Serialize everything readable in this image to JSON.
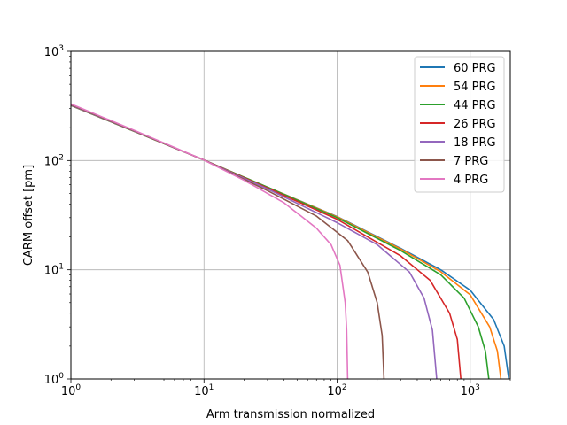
{
  "chart_data": {
    "type": "line",
    "title": "",
    "xlabel": "Arm transmission normalized",
    "ylabel": "CARM offset [pm]",
    "xscale": "log",
    "yscale": "log",
    "xlim": [
      1,
      2000
    ],
    "ylim": [
      1,
      1000
    ],
    "x_ticks": [
      {
        "base": "10",
        "exp": "0",
        "value": 1
      },
      {
        "base": "10",
        "exp": "1",
        "value": 10
      },
      {
        "base": "10",
        "exp": "2",
        "value": 100
      },
      {
        "base": "10",
        "exp": "3",
        "value": 1000
      }
    ],
    "y_ticks": [
      {
        "base": "10",
        "exp": "0",
        "value": 1
      },
      {
        "base": "10",
        "exp": "1",
        "value": 10
      },
      {
        "base": "10",
        "exp": "2",
        "value": 100
      },
      {
        "base": "10",
        "exp": "3",
        "value": 1000
      }
    ],
    "grid": true,
    "legend_position": "top-right",
    "series": [
      {
        "name": "60 PRG",
        "color": "#1f77b4",
        "tmax": 1950,
        "points": [
          [
            1,
            320
          ],
          [
            3,
            185
          ],
          [
            10,
            101
          ],
          [
            30,
            57
          ],
          [
            100,
            30.7
          ],
          [
            300,
            15.7
          ],
          [
            600,
            10
          ],
          [
            1000,
            6.5
          ],
          [
            1500,
            3.5
          ],
          [
            1800,
            2
          ],
          [
            1950,
            1
          ]
        ]
      },
      {
        "name": "54 PRG",
        "color": "#ff7f0e",
        "tmax": 1700,
        "points": [
          [
            1,
            320
          ],
          [
            3,
            185
          ],
          [
            10,
            101
          ],
          [
            30,
            57
          ],
          [
            100,
            30.5
          ],
          [
            300,
            15.5
          ],
          [
            600,
            9.6
          ],
          [
            1000,
            5.9
          ],
          [
            1400,
            3
          ],
          [
            1600,
            1.8
          ],
          [
            1700,
            1
          ]
        ]
      },
      {
        "name": "44 PRG",
        "color": "#2ca02c",
        "tmax": 1380,
        "points": [
          [
            1,
            320
          ],
          [
            3,
            185
          ],
          [
            10,
            101
          ],
          [
            30,
            57
          ],
          [
            100,
            30
          ],
          [
            300,
            15
          ],
          [
            600,
            9
          ],
          [
            900,
            5.5
          ],
          [
            1150,
            3
          ],
          [
            1300,
            1.8
          ],
          [
            1380,
            1
          ]
        ]
      },
      {
        "name": "26 PRG",
        "color": "#d62728",
        "tmax": 850,
        "points": [
          [
            1,
            322
          ],
          [
            3,
            186
          ],
          [
            10,
            101
          ],
          [
            30,
            56
          ],
          [
            100,
            29
          ],
          [
            300,
            13.4
          ],
          [
            500,
            8
          ],
          [
            700,
            4
          ],
          [
            800,
            2.3
          ],
          [
            850,
            1
          ]
        ]
      },
      {
        "name": "18 PRG",
        "color": "#9467bd",
        "tmax": 560,
        "points": [
          [
            1,
            322
          ],
          [
            3,
            186
          ],
          [
            10,
            101
          ],
          [
            30,
            55
          ],
          [
            100,
            27
          ],
          [
            200,
            17
          ],
          [
            350,
            9.5
          ],
          [
            450,
            5.5
          ],
          [
            520,
            2.8
          ],
          [
            560,
            1
          ]
        ]
      },
      {
        "name": "7 PRG",
        "color": "#8c564b",
        "tmax": 225,
        "points": [
          [
            1,
            325
          ],
          [
            3,
            187
          ],
          [
            10,
            101
          ],
          [
            30,
            53
          ],
          [
            70,
            31
          ],
          [
            120,
            18.5
          ],
          [
            170,
            9.5
          ],
          [
            200,
            5
          ],
          [
            218,
            2.5
          ],
          [
            225,
            1
          ]
        ]
      },
      {
        "name": "4 PRG",
        "color": "#e377c2",
        "tmax": 120,
        "points": [
          [
            1,
            330
          ],
          [
            3,
            189
          ],
          [
            10,
            101
          ],
          [
            20,
            66
          ],
          [
            40,
            41
          ],
          [
            70,
            24
          ],
          [
            90,
            17
          ],
          [
            105,
            11
          ],
          [
            115,
            5
          ],
          [
            118,
            2.8
          ],
          [
            120,
            1
          ]
        ]
      }
    ]
  }
}
